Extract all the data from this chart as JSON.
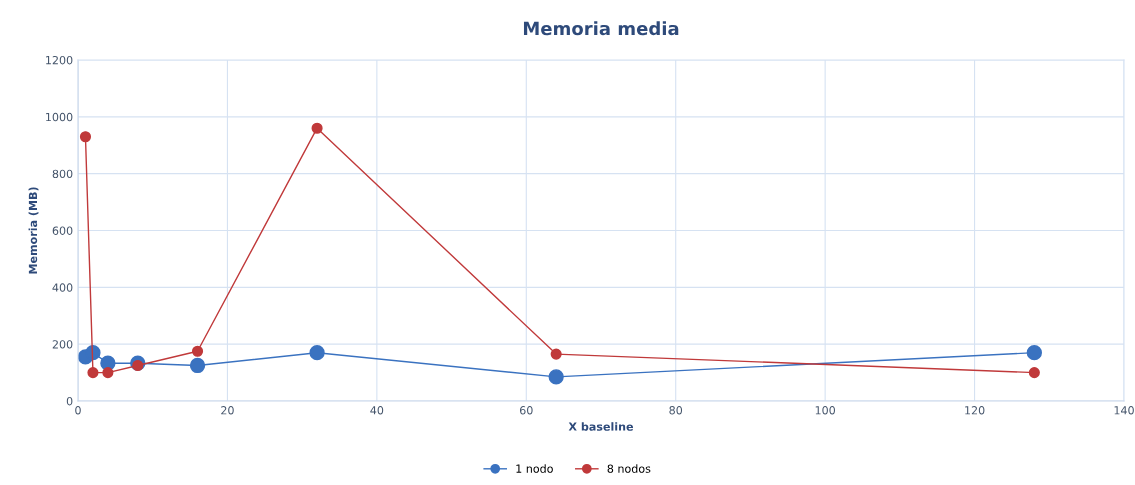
{
  "chart_data": {
    "type": "line",
    "title": "Memoria media",
    "xlabel": "X baseline",
    "ylabel": "Memoria (MB)",
    "x": [
      1,
      2,
      4,
      8,
      16,
      32,
      64,
      128
    ],
    "series": [
      {
        "name": "1 nodo",
        "color": "#3a72c0",
        "values": [
          155,
          170,
          133,
          133,
          125,
          170,
          85,
          170
        ]
      },
      {
        "name": "8 nodos",
        "color": "#c0393a",
        "values": [
          930,
          100,
          100,
          125,
          175,
          960,
          165,
          100
        ]
      }
    ],
    "xlim": [
      0,
      140
    ],
    "xticks": [
      0,
      20,
      40,
      60,
      80,
      100,
      120,
      140
    ],
    "ylim": [
      0,
      1200
    ],
    "yticks": [
      0,
      200,
      400,
      600,
      800,
      1000,
      1200
    ],
    "grid": true,
    "legend": "bottom",
    "marker": "circle",
    "line_style": "solid"
  }
}
